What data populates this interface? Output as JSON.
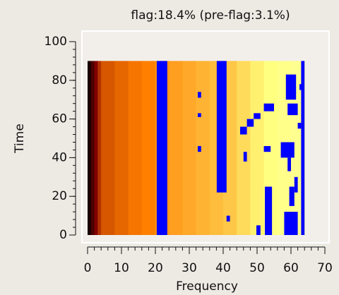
{
  "chart_data": {
    "type": "heatmap",
    "title": "flag:18.4% (pre-flag:3.1%)",
    "xlabel": "Frequency",
    "ylabel": "Time",
    "xlim": [
      0,
      70
    ],
    "ylim": [
      0,
      100
    ],
    "xticks": [
      0,
      10,
      20,
      30,
      40,
      50,
      60,
      70
    ],
    "yticks": [
      0,
      20,
      40,
      60,
      80,
      100
    ],
    "xminor": [
      0,
      2,
      4,
      6,
      8,
      10,
      12,
      14,
      16,
      18,
      20,
      22,
      24,
      26,
      28,
      30,
      32,
      34,
      36,
      38,
      40,
      42,
      44,
      46,
      48,
      50,
      52,
      54,
      56,
      58,
      60,
      62,
      64,
      66,
      68,
      70
    ],
    "yminor": [
      0,
      4,
      8,
      12,
      16,
      20,
      24,
      28,
      32,
      36,
      40,
      44,
      48,
      52,
      56,
      60,
      64,
      68,
      72,
      76,
      80,
      84,
      88,
      92,
      96,
      100
    ],
    "x_edges": [
      0,
      1,
      2,
      3,
      4,
      8,
      12,
      16,
      20,
      24,
      28,
      32,
      36,
      40,
      44,
      48,
      52,
      56,
      60,
      64
    ],
    "y_extent": [
      0,
      90
    ],
    "values": [
      0.05,
      0.15,
      0.25,
      0.35,
      0.42,
      0.45,
      0.48,
      0.5,
      0.54,
      0.56,
      0.58,
      0.6,
      0.62,
      0.64,
      0.68,
      0.72,
      0.75,
      0.77,
      0.78
    ],
    "colormap": "afmhot",
    "flag_color": "#0000ff",
    "flags": [
      [
        20.4,
        23.5,
        0,
        90
      ],
      [
        38.1,
        41,
        22,
        90
      ],
      [
        63,
        64,
        0,
        90
      ],
      [
        52.3,
        54.4,
        0,
        25
      ],
      [
        49.8,
        51,
        0,
        5
      ],
      [
        41,
        42,
        7,
        10
      ],
      [
        32.5,
        33.5,
        71,
        74
      ],
      [
        32.5,
        33.5,
        61,
        63
      ],
      [
        32.5,
        33.5,
        43,
        46
      ],
      [
        45,
        47,
        52,
        56
      ],
      [
        47,
        49,
        56,
        60
      ],
      [
        49,
        51,
        60,
        63
      ],
      [
        52,
        55,
        64,
        68
      ],
      [
        46,
        47,
        38,
        43
      ],
      [
        52,
        54,
        43,
        46
      ],
      [
        58.5,
        61.5,
        70,
        83
      ],
      [
        59,
        62,
        62,
        68
      ],
      [
        57,
        61,
        40,
        48
      ],
      [
        59,
        60,
        33,
        40
      ],
      [
        58,
        62,
        0,
        12
      ],
      [
        59.5,
        61,
        15,
        25
      ],
      [
        61,
        62,
        22,
        30
      ],
      [
        62,
        63,
        55,
        58
      ],
      [
        62.5,
        63.5,
        75,
        78
      ]
    ]
  }
}
